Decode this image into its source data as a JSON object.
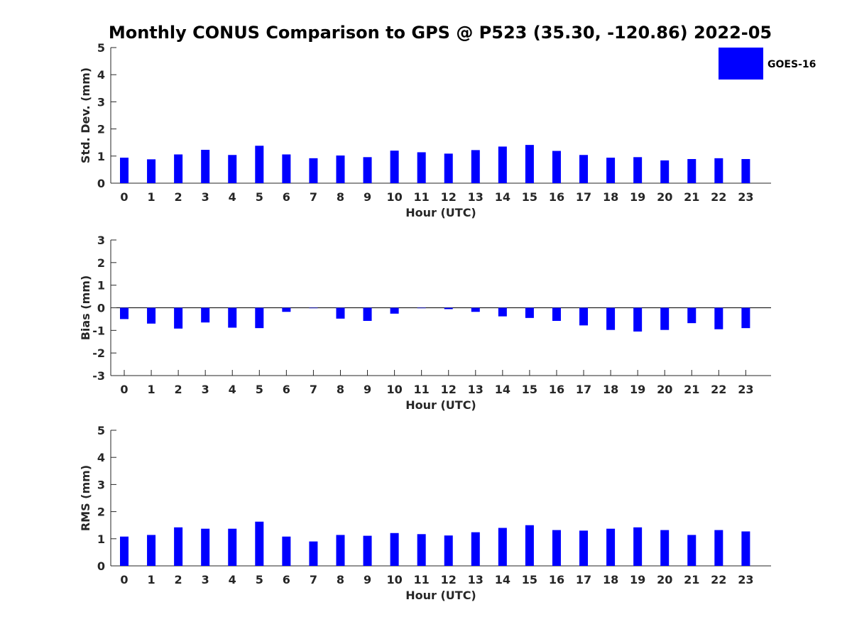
{
  "title": "Monthly CONUS Comparison to GPS @ P523 (35.30, -120.86) 2022-05",
  "legend": {
    "label": "GOES-16",
    "color": "#0000ff"
  },
  "chart_data": [
    {
      "type": "bar",
      "xlabel": "Hour (UTC)",
      "ylabel": "Std. Dev. (mm)",
      "ylim": [
        0,
        5
      ],
      "yticks": [
        0,
        1,
        2,
        3,
        4,
        5
      ],
      "categories": [
        "0",
        "1",
        "2",
        "3",
        "4",
        "5",
        "6",
        "7",
        "8",
        "9",
        "10",
        "11",
        "12",
        "13",
        "14",
        "15",
        "16",
        "17",
        "18",
        "19",
        "20",
        "21",
        "22",
        "23"
      ],
      "series": [
        {
          "name": "GOES-16",
          "color": "#0000ff",
          "values": [
            0.94,
            0.88,
            1.06,
            1.23,
            1.04,
            1.38,
            1.06,
            0.92,
            1.02,
            0.96,
            1.2,
            1.14,
            1.09,
            1.22,
            1.35,
            1.41,
            1.19,
            1.04,
            0.94,
            0.96,
            0.84,
            0.89,
            0.92,
            0.89
          ]
        }
      ]
    },
    {
      "type": "bar",
      "xlabel": "Hour (UTC)",
      "ylabel": "Bias (mm)",
      "ylim": [
        -3,
        3
      ],
      "yticks": [
        -3,
        -2,
        -1,
        0,
        1,
        2,
        3
      ],
      "categories": [
        "0",
        "1",
        "2",
        "3",
        "4",
        "5",
        "6",
        "7",
        "8",
        "9",
        "10",
        "11",
        "12",
        "13",
        "14",
        "15",
        "16",
        "17",
        "18",
        "19",
        "20",
        "21",
        "22",
        "23"
      ],
      "series": [
        {
          "name": "GOES-16",
          "color": "#0000ff",
          "values": [
            -0.5,
            -0.7,
            -0.92,
            -0.65,
            -0.88,
            -0.9,
            -0.18,
            -0.02,
            -0.48,
            -0.58,
            -0.26,
            -0.02,
            -0.06,
            -0.18,
            -0.38,
            -0.45,
            -0.58,
            -0.78,
            -0.98,
            -1.05,
            -0.98,
            -0.68,
            -0.95,
            -0.9
          ]
        }
      ]
    },
    {
      "type": "bar",
      "xlabel": "Hour (UTC)",
      "ylabel": "RMS (mm)",
      "ylim": [
        0,
        5
      ],
      "yticks": [
        0,
        1,
        2,
        3,
        4,
        5
      ],
      "categories": [
        "0",
        "1",
        "2",
        "3",
        "4",
        "5",
        "6",
        "7",
        "8",
        "9",
        "10",
        "11",
        "12",
        "13",
        "14",
        "15",
        "16",
        "17",
        "18",
        "19",
        "20",
        "21",
        "22",
        "23"
      ],
      "series": [
        {
          "name": "GOES-16",
          "color": "#0000ff",
          "values": [
            1.08,
            1.14,
            1.42,
            1.37,
            1.37,
            1.63,
            1.08,
            0.9,
            1.14,
            1.11,
            1.21,
            1.17,
            1.12,
            1.24,
            1.4,
            1.5,
            1.32,
            1.3,
            1.37,
            1.42,
            1.32,
            1.14,
            1.32,
            1.27
          ]
        }
      ]
    }
  ]
}
